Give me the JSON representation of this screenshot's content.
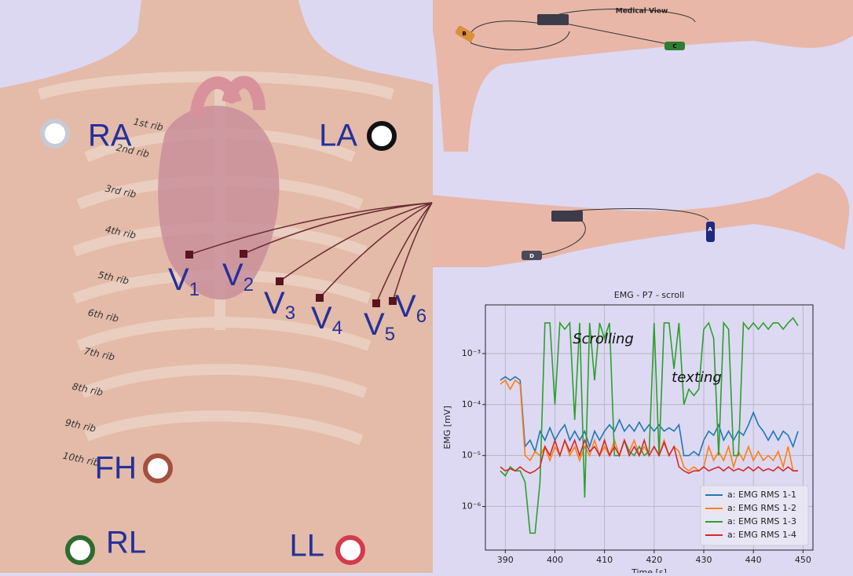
{
  "torso": {
    "limb_electrodes": [
      {
        "label": "RA"
      },
      {
        "label": "LA"
      },
      {
        "label": "FH"
      },
      {
        "label": "RL"
      },
      {
        "label": "LL"
      }
    ],
    "precordial": [
      {
        "letter": "V",
        "index": "1"
      },
      {
        "letter": "V",
        "index": "2"
      },
      {
        "letter": "V",
        "index": "3"
      },
      {
        "letter": "V",
        "index": "4"
      },
      {
        "letter": "V",
        "index": "5"
      },
      {
        "letter": "V",
        "index": "6"
      }
    ],
    "ribs": [
      "1st rib",
      "2nd rib",
      "3rd rib",
      "4th rib",
      "5th rib",
      "6th rib",
      "7th rib",
      "8th rib",
      "9th rib",
      "10th rib"
    ]
  },
  "arms": {
    "title": "Medical View",
    "sensors": [
      "B",
      "C",
      "A",
      "D"
    ]
  },
  "chart_data": {
    "type": "line",
    "title": "EMG - P7 - scroll",
    "xlabel": "Time [s]",
    "ylabel": "EMG [mV]",
    "annotations": [
      "Scrolling",
      "texting"
    ],
    "yscale": "log",
    "grid": true,
    "legend": "lower right",
    "xlim": [
      386,
      452
    ],
    "xticks": [
      390,
      400,
      410,
      420,
      430,
      440,
      450
    ],
    "ylim": [
      1.4e-07,
      0.009
    ],
    "yticks": [
      {
        "value": 1e-06,
        "label": "10⁻⁶"
      },
      {
        "value": 1e-05,
        "label": "10⁻⁵"
      },
      {
        "value": 0.0001,
        "label": "10⁻⁴"
      },
      {
        "value": 0.001,
        "label": "10⁻³"
      }
    ],
    "x": [
      389,
      390,
      391,
      392,
      393,
      394,
      395,
      396,
      397,
      398,
      399,
      400,
      401,
      402,
      403,
      404,
      405,
      406,
      407,
      408,
      409,
      410,
      411,
      412,
      413,
      414,
      415,
      416,
      417,
      418,
      419,
      420,
      421,
      422,
      423,
      424,
      425,
      426,
      427,
      428,
      429,
      430,
      431,
      432,
      433,
      434,
      435,
      436,
      437,
      438,
      439,
      440,
      441,
      442,
      443,
      444,
      445,
      446,
      447,
      448,
      449
    ],
    "series": [
      {
        "name": "a: EMG RMS 1-1",
        "color": "#1f77b4",
        "values": [
          0.0003,
          0.00035,
          0.0003,
          0.00035,
          0.0003,
          1.5e-05,
          2e-05,
          1.2e-05,
          3e-05,
          2e-05,
          3.5e-05,
          2e-05,
          3e-05,
          4e-05,
          2e-05,
          3e-05,
          2e-05,
          3e-05,
          1.5e-05,
          3e-05,
          2e-05,
          3e-05,
          4e-05,
          3e-05,
          5e-05,
          3e-05,
          4e-05,
          3e-05,
          4.5e-05,
          3e-05,
          4e-05,
          3e-05,
          4e-05,
          3e-05,
          3.5e-05,
          3e-05,
          4e-05,
          1e-05,
          1e-05,
          1.2e-05,
          1e-05,
          2e-05,
          3e-05,
          2.5e-05,
          4e-05,
          2e-05,
          3e-05,
          2e-05,
          3e-05,
          2.5e-05,
          4e-05,
          7e-05,
          4e-05,
          3e-05,
          2e-05,
          3e-05,
          2e-05,
          3e-05,
          2.5e-05,
          1.5e-05,
          3e-05
        ]
      },
      {
        "name": "a: EMG RMS 1-2",
        "color": "#ff7f0e",
        "values": [
          0.00025,
          0.0003,
          0.0002,
          0.0003,
          0.00025,
          1e-05,
          8e-06,
          1.2e-05,
          1e-05,
          1.5e-05,
          8e-06,
          1.5e-05,
          1e-05,
          2e-05,
          1e-05,
          1.5e-05,
          8e-06,
          1.5e-05,
          1e-05,
          2e-05,
          1e-05,
          1.5e-05,
          1e-05,
          2e-05,
          1e-05,
          2e-05,
          1.2e-05,
          2e-05,
          1e-05,
          1.5e-05,
          1e-05,
          1.5e-05,
          1e-05,
          2e-05,
          1e-05,
          1.5e-05,
          1.2e-05,
          6e-06,
          5e-06,
          6e-06,
          5e-06,
          6e-06,
          1.5e-05,
          8e-06,
          1.2e-05,
          8e-06,
          1.5e-05,
          6e-06,
          1.2e-05,
          8e-06,
          1.5e-05,
          8e-06,
          1.2e-05,
          8e-06,
          1e-05,
          8e-06,
          1.2e-05,
          6e-06,
          1.5e-05,
          5e-06,
          5e-06
        ]
      },
      {
        "name": "a: EMG RMS 1-3",
        "color": "#2ca02c",
        "values": [
          5e-06,
          4e-06,
          6e-06,
          5e-06,
          5e-06,
          3e-06,
          3e-07,
          3e-07,
          3e-06,
          0.004,
          0.004,
          0.0001,
          0.004,
          0.003,
          0.004,
          5e-05,
          0.004,
          1.5e-06,
          0.004,
          0.0003,
          0.004,
          0.002,
          0.004,
          1e-05,
          1e-05,
          2e-05,
          1.2e-05,
          1e-05,
          1.5e-05,
          1e-05,
          1.2e-05,
          0.004,
          1e-05,
          0.004,
          0.004,
          0.0005,
          0.004,
          0.0001,
          0.0002,
          0.00015,
          0.0002,
          0.003,
          0.004,
          0.002,
          1e-05,
          0.004,
          0.003,
          1e-05,
          1e-05,
          0.004,
          0.003,
          0.004,
          0.003,
          0.004,
          0.003,
          0.004,
          0.004,
          0.003,
          0.004,
          0.005,
          0.0035
        ]
      },
      {
        "name": "a: EMG RMS 1-4",
        "color": "#d62728",
        "values": [
          6e-06,
          5e-06,
          5.5e-06,
          5e-06,
          6e-06,
          5e-06,
          4.5e-06,
          5e-06,
          6e-06,
          1.5e-05,
          1e-05,
          2e-05,
          1e-05,
          2e-05,
          1.2e-05,
          2e-05,
          1e-05,
          2e-05,
          1.2e-05,
          1.5e-05,
          1e-05,
          2e-05,
          1e-05,
          1.5e-05,
          1e-05,
          2e-05,
          1e-05,
          1.5e-05,
          1e-05,
          2e-05,
          1e-05,
          1.5e-05,
          1e-05,
          1.8e-05,
          1e-05,
          1.5e-05,
          6e-06,
          5e-06,
          4.5e-06,
          5e-06,
          5e-06,
          6e-06,
          5e-06,
          5.5e-06,
          6e-06,
          5e-06,
          6e-06,
          5e-06,
          5.5e-06,
          5e-06,
          6e-06,
          5e-06,
          6e-06,
          5e-06,
          5.5e-06,
          5e-06,
          6e-06,
          5e-06,
          6e-06,
          5e-06,
          5e-06
        ]
      }
    ]
  }
}
